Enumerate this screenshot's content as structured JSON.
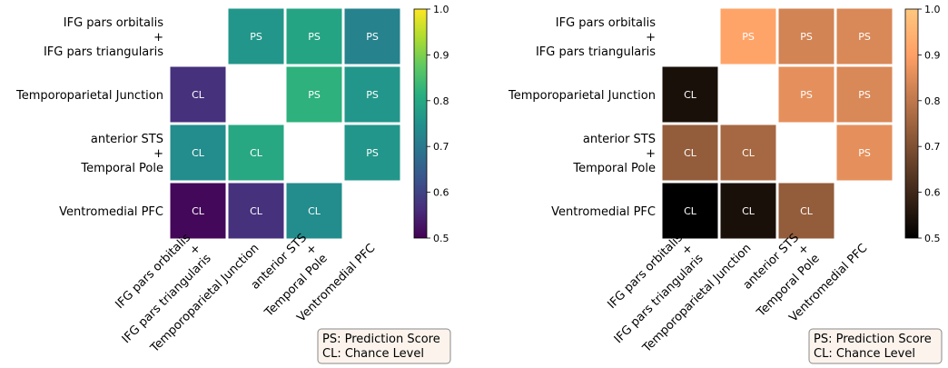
{
  "chart_data": [
    {
      "type": "heatmap",
      "colormap": "viridis",
      "row_labels": [
        [
          "IFG pars orbitalis",
          "+",
          "IFG pars triangularis"
        ],
        [
          "Temporoparietal Junction"
        ],
        [
          "anterior STS",
          "+",
          "Temporal Pole"
        ],
        [
          "Ventromedial PFC"
        ]
      ],
      "col_labels": [
        [
          "IFG pars orbitalis",
          "+",
          "IFG pars triangularis"
        ],
        [
          "Temporoparietal Junction"
        ],
        [
          "anterior STS",
          "+",
          "Temporal Pole"
        ],
        [
          "Ventromedial PFC"
        ]
      ],
      "values": [
        [
          null,
          0.76,
          0.79,
          0.72
        ],
        [
          0.57,
          null,
          0.82,
          0.76
        ],
        [
          0.74,
          0.8,
          null,
          0.76
        ],
        [
          0.51,
          0.57,
          0.74,
          null
        ]
      ],
      "cell_labels": [
        [
          "",
          "PS",
          "PS",
          "PS"
        ],
        [
          "CL",
          "",
          "PS",
          "PS"
        ],
        [
          "CL",
          "CL",
          "",
          "PS"
        ],
        [
          "CL",
          "CL",
          "CL",
          ""
        ]
      ],
      "colorbar": {
        "min": 0.5,
        "max": 1.0,
        "ticks": [
          "0.5",
          "0.6",
          "0.7",
          "0.8",
          "0.9",
          "1.0"
        ]
      },
      "legend": [
        "PS: Prediction Score",
        "CL: Chance Level"
      ],
      "legend_position": "bottom-right"
    },
    {
      "type": "heatmap",
      "colormap": "copper",
      "row_labels": [
        [
          "IFG pars orbitalis",
          "+",
          "IFG pars triangularis"
        ],
        [
          "Temporoparietal Junction"
        ],
        [
          "anterior STS",
          "+",
          "Temporal Pole"
        ],
        [
          "Ventromedial PFC"
        ]
      ],
      "col_labels": [
        [
          "IFG pars orbitalis",
          "+",
          "IFG pars triangularis"
        ],
        [
          "Temporoparietal Junction"
        ],
        [
          "anterior STS",
          "+",
          "Temporal Pole"
        ],
        [
          "Ventromedial PFC"
        ]
      ],
      "values": [
        [
          null,
          0.91,
          0.83,
          0.84
        ],
        [
          0.54,
          null,
          0.86,
          0.84
        ],
        [
          0.73,
          0.76,
          null,
          0.86
        ],
        [
          0.5,
          0.54,
          0.73,
          null
        ]
      ],
      "cell_labels": [
        [
          "",
          "PS",
          "PS",
          "PS"
        ],
        [
          "CL",
          "",
          "PS",
          "PS"
        ],
        [
          "CL",
          "CL",
          "",
          "PS"
        ],
        [
          "CL",
          "CL",
          "CL",
          ""
        ]
      ],
      "colorbar": {
        "min": 0.5,
        "max": 1.0,
        "ticks": [
          "0.5",
          "0.6",
          "0.7",
          "0.8",
          "0.9",
          "1.0"
        ]
      },
      "legend": [
        "PS: Prediction Score",
        "CL: Chance Level"
      ],
      "legend_position": "bottom-right"
    }
  ]
}
